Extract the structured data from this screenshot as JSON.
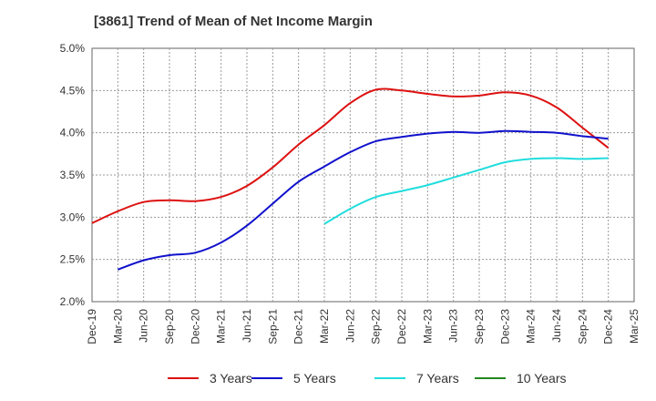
{
  "chart_data": {
    "type": "line",
    "title": "[3861]  Trend of Mean of Net Income Margin",
    "x_labels": [
      "Dec-19",
      "Mar-20",
      "Jun-20",
      "Sep-20",
      "Dec-20",
      "Mar-21",
      "Jun-21",
      "Sep-21",
      "Dec-21",
      "Mar-22",
      "Jun-22",
      "Sep-22",
      "Dec-22",
      "Mar-23",
      "Jun-23",
      "Sep-23",
      "Dec-23",
      "Mar-24",
      "Jun-24",
      "Sep-24",
      "Dec-24",
      "Mar-25"
    ],
    "y_ticks": [
      "2.0%",
      "2.5%",
      "3.0%",
      "3.5%",
      "4.0%",
      "4.5%",
      "5.0%"
    ],
    "ylim": [
      2.0,
      5.0
    ],
    "y_unit": "%",
    "grid": true,
    "legend_position": "bottom",
    "series": [
      {
        "name": "3 Years",
        "color": "#dd1111",
        "values": [
          2.93,
          3.07,
          3.18,
          3.2,
          3.19,
          3.24,
          3.37,
          3.59,
          3.86,
          4.09,
          4.35,
          4.51,
          4.5,
          4.46,
          4.43,
          4.44,
          4.48,
          4.44,
          4.3,
          4.06,
          3.82,
          null
        ]
      },
      {
        "name": "5 Years",
        "color": "#1111cc",
        "values": [
          null,
          2.38,
          2.49,
          2.55,
          2.58,
          2.7,
          2.9,
          3.16,
          3.42,
          3.6,
          3.77,
          3.9,
          3.95,
          3.99,
          4.01,
          4.0,
          4.02,
          4.01,
          4.0,
          3.96,
          3.93,
          null
        ]
      },
      {
        "name": "7 Years",
        "color": "#22dddd",
        "values": [
          null,
          null,
          null,
          null,
          null,
          null,
          null,
          null,
          null,
          2.92,
          3.1,
          3.24,
          3.31,
          3.38,
          3.47,
          3.56,
          3.65,
          3.69,
          3.7,
          3.69,
          3.7,
          null
        ]
      },
      {
        "name": "10 Years",
        "color": "#228822",
        "values": [
          null,
          null,
          null,
          null,
          null,
          null,
          null,
          null,
          null,
          null,
          null,
          null,
          null,
          null,
          null,
          null,
          null,
          null,
          null,
          null,
          null,
          null
        ]
      }
    ]
  }
}
